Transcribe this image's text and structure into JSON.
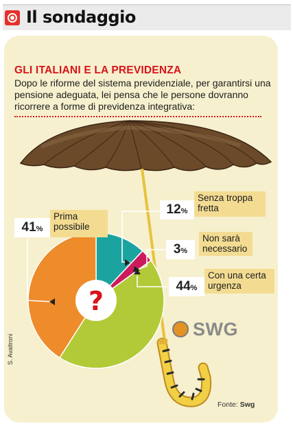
{
  "header": {
    "title": "Il sondaggio"
  },
  "card": {
    "title": "GLI ITALIANI E LA PREVIDENZA",
    "question": "Dopo le riforme del sistema previdenziale, per garantirsi una pensione adeguata, lei pensa che le persone dovranno ricorrere a forme di previdenza integrativa:",
    "center_mark": "?",
    "credit": "S. Avaltroni",
    "logo_text": "SWG",
    "source_label": "Fonte:",
    "source_value": "Swg"
  },
  "colors": {
    "orange": "#ee8b2b",
    "teal": "#1ba3a0",
    "magenta": "#cc1b5d",
    "green": "#b3ca38",
    "accent_red": "#d8131b"
  },
  "chart_data": {
    "type": "pie",
    "title": "GLI ITALIANI E LA PREVIDENZA",
    "values": [
      12,
      3,
      44,
      41
    ],
    "slices": [
      {
        "label_lines": [
          "Senza troppa",
          "fretta"
        ],
        "value": 12,
        "display": "12",
        "unit": "%",
        "color": "#1ba3a0"
      },
      {
        "label_lines": [
          "Non sarà",
          "necessario"
        ],
        "value": 3,
        "display": "3",
        "unit": "%",
        "color": "#cc1b5d"
      },
      {
        "label_lines": [
          "Con una certa",
          "urgenza"
        ],
        "value": 44,
        "display": "44",
        "unit": "%",
        "color": "#b3ca38"
      },
      {
        "label_lines": [
          "Prima",
          "possibile"
        ],
        "value": 41,
        "display": "41",
        "unit": "%",
        "color": "#ee8b2b"
      }
    ]
  }
}
